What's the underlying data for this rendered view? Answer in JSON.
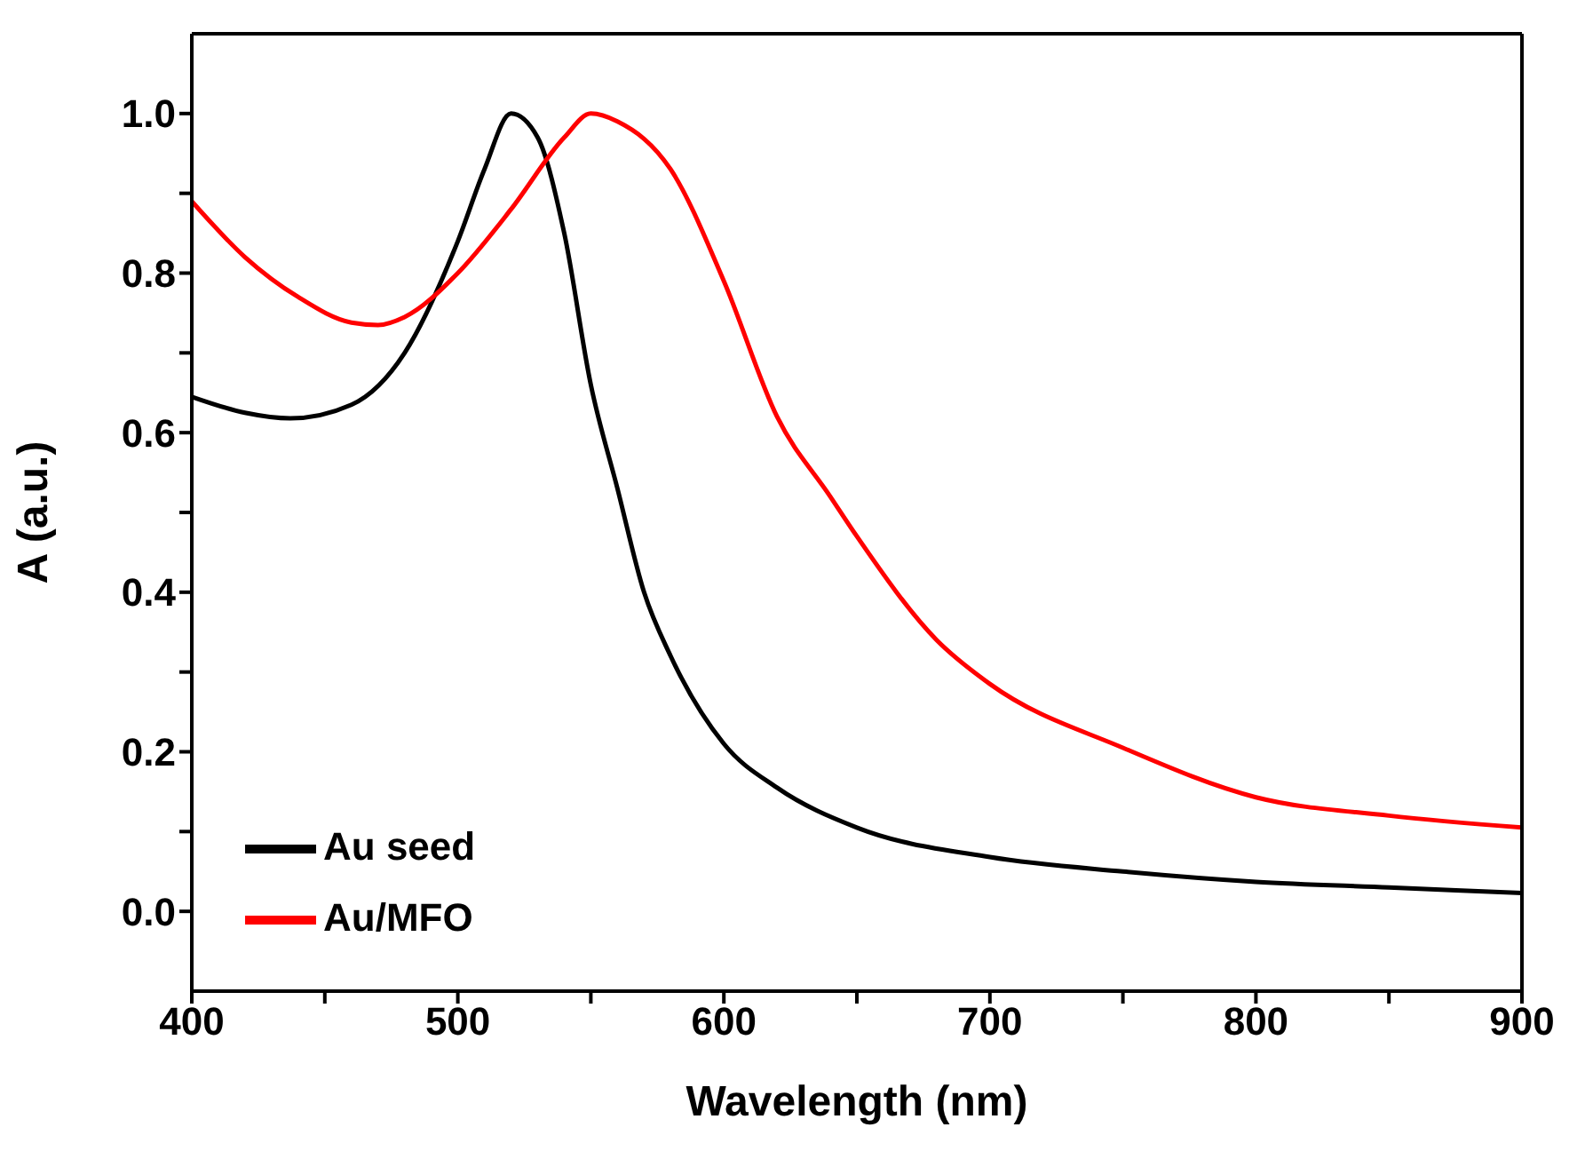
{
  "chart_data": {
    "type": "line",
    "xlabel": "Wavelength (nm)",
    "ylabel": "A (a.u.)",
    "xlim": [
      400,
      900
    ],
    "ylim": [
      -0.1,
      1.1
    ],
    "xticks": [
      400,
      {
        "value": 450,
        "label": null
      },
      500,
      {
        "value": 550,
        "label": null
      },
      600,
      {
        "value": 650,
        "label": null
      },
      700,
      {
        "value": 750,
        "label": null
      },
      800,
      {
        "value": 850,
        "label": null
      },
      900
    ],
    "yticks": [
      {
        "value": 0,
        "label": "0.0"
      },
      {
        "value": 0.1,
        "label": null
      },
      0.2,
      {
        "value": 0.3,
        "label": null
      },
      0.4,
      {
        "value": 0.5,
        "label": null
      },
      0.6,
      {
        "value": 0.7,
        "label": null
      },
      0.8,
      {
        "value": 0.9,
        "label": null
      },
      {
        "value": 1,
        "label": "1.0"
      }
    ],
    "legend": "bottom left",
    "marker": "none",
    "line_style": "solid",
    "series": [
      {
        "name": "Au seed",
        "color": "#000000",
        "x": [
          400,
          420,
          437,
          460,
          480,
          500,
          510,
          520,
          530,
          540,
          550,
          560,
          570,
          580,
          600,
          620,
          650,
          700,
          750,
          800,
          850,
          900
        ],
        "values": [
          0.645,
          0.625,
          0.618,
          0.635,
          0.7,
          0.84,
          0.93,
          1.0,
          0.97,
          0.85,
          0.66,
          0.53,
          0.4,
          0.32,
          0.21,
          0.155,
          0.105,
          0.068,
          0.05,
          0.037,
          0.03,
          0.023
        ]
      },
      {
        "name": "Au/MFO",
        "color": "#ff0000",
        "x": [
          400,
          420,
          440,
          460,
          470,
          480,
          500,
          520,
          540,
          550,
          560,
          580,
          600,
          620,
          640,
          650,
          680,
          700,
          750,
          800,
          850,
          900
        ],
        "values": [
          0.89,
          0.82,
          0.77,
          0.738,
          0.735,
          0.745,
          0.8,
          0.88,
          0.97,
          1.0,
          0.99,
          0.93,
          0.79,
          0.62,
          0.52,
          0.47,
          0.34,
          0.285,
          0.205,
          0.143,
          0.12,
          0.105
        ]
      }
    ]
  }
}
